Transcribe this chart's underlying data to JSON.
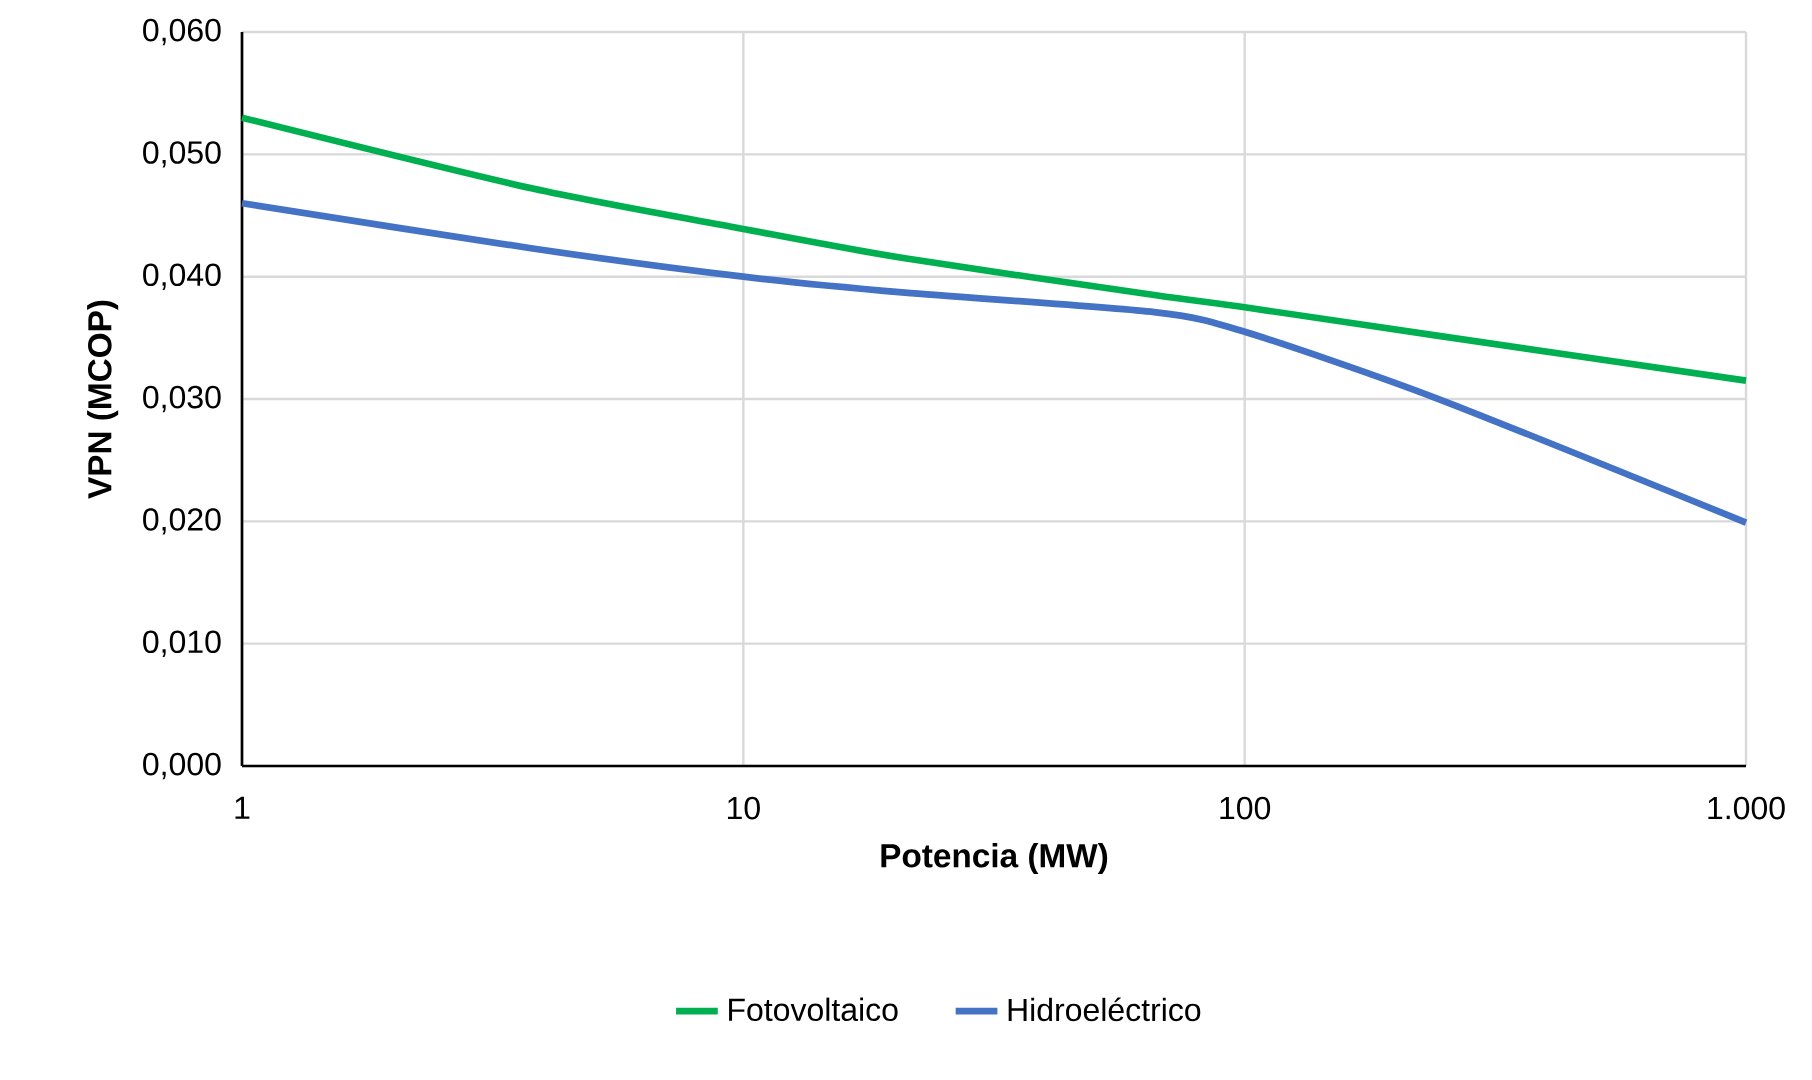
{
  "chart_data": {
    "type": "line",
    "xlabel": "Potencia (MW)",
    "ylabel": "VPN (MCOP)",
    "log": "x",
    "grid": true,
    "legend": "bottom",
    "line_style": "solid",
    "marker": "none",
    "xlim": [
      1,
      1000
    ],
    "ylim": [
      0,
      0.06
    ],
    "xticks": [
      1,
      10,
      100,
      {
        "value": 1000,
        "label": "1.000"
      }
    ],
    "yticks": [
      {
        "value": 0,
        "label": "0,000"
      },
      {
        "value": 0.01,
        "label": "0,010"
      },
      {
        "value": 0.02,
        "label": "0,020"
      },
      {
        "value": 0.03,
        "label": "0,030"
      },
      {
        "value": 0.04,
        "label": "0,040"
      },
      {
        "value": 0.05,
        "label": "0,050"
      },
      {
        "value": 0.06,
        "label": "0,060"
      }
    ],
    "series": [
      {
        "name": "Fotovoltaico",
        "color": "#00b050",
        "x": [
          1,
          3.8,
          10,
          21,
          66,
          100,
          240,
          1000
        ],
        "values": [
          0.053,
          0.0472,
          0.0439,
          0.0415,
          0.0385,
          0.0375,
          0.0352,
          0.0315
        ]
      },
      {
        "name": "Hidroeléctrico",
        "color": "#4472c4",
        "x": [
          1,
          3.8,
          10,
          21,
          66,
          100,
          240,
          1000
        ],
        "values": [
          0.046,
          0.0423,
          0.04,
          0.0387,
          0.0371,
          0.0355,
          0.0301,
          0.0199
        ]
      }
    ]
  }
}
